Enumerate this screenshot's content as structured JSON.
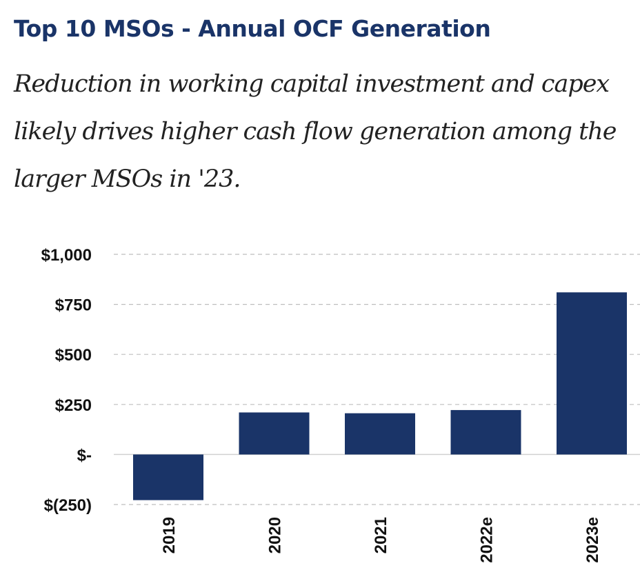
{
  "title": "Top 10 MSOs - Annual OCF Generation",
  "subtitle": "Reduction in working capital investment and capex likely drives higher cash flow generation among the larger MSOs in '23.",
  "colors": {
    "bar": "#1a3468",
    "title": "#1a3468",
    "grid": "#bdbdbd"
  },
  "chart_data": {
    "type": "bar",
    "categories": [
      "2019",
      "2020",
      "2021",
      "2022e",
      "2023e"
    ],
    "values": [
      -228,
      210,
      206,
      222,
      810
    ],
    "ylim": [
      -250,
      1000
    ],
    "yticks": [
      1000,
      750,
      500,
      250,
      0,
      -250
    ],
    "ytick_labels": [
      "$1,000",
      "$750",
      "$500",
      "$250",
      "$-",
      "$(250)"
    ],
    "xlabel": "",
    "ylabel": "",
    "grid": true,
    "grid_style": "dashed",
    "legend": false
  }
}
